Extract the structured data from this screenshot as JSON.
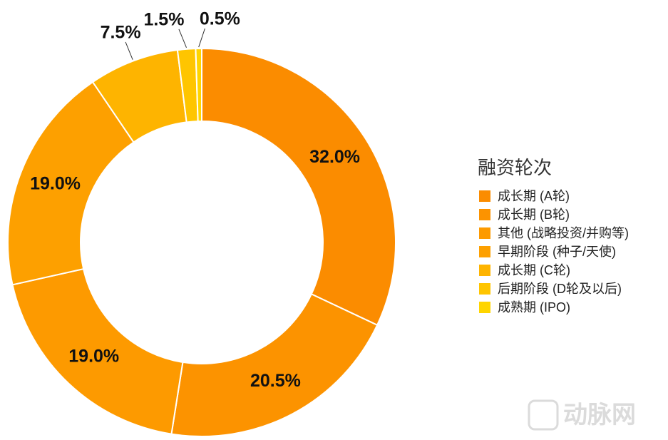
{
  "chart_data": {
    "type": "donut",
    "legend_title": "融资轮次",
    "categories": [
      "成长期 (A轮)",
      "成长期 (B轮)",
      "其他 (战略投资/并购等)",
      "早期阶段 (种子/天使)",
      "成长期 (C轮)",
      "后期阶段 (D轮及以后)",
      "成熟期 (IPO)"
    ],
    "values": [
      32.0,
      20.5,
      19.0,
      19.0,
      7.5,
      1.5,
      0.5
    ],
    "value_labels": [
      "32.0%",
      "20.5%",
      "19.0%",
      "19.0%",
      "7.5%",
      "1.5%",
      "0.5%"
    ],
    "colors": [
      "#fb8c00",
      "#fc9300",
      "#fd9a00",
      "#fda000",
      "#feb400",
      "#ffc500",
      "#ffd500"
    ],
    "legend": "right",
    "watermark": "动脉网"
  }
}
